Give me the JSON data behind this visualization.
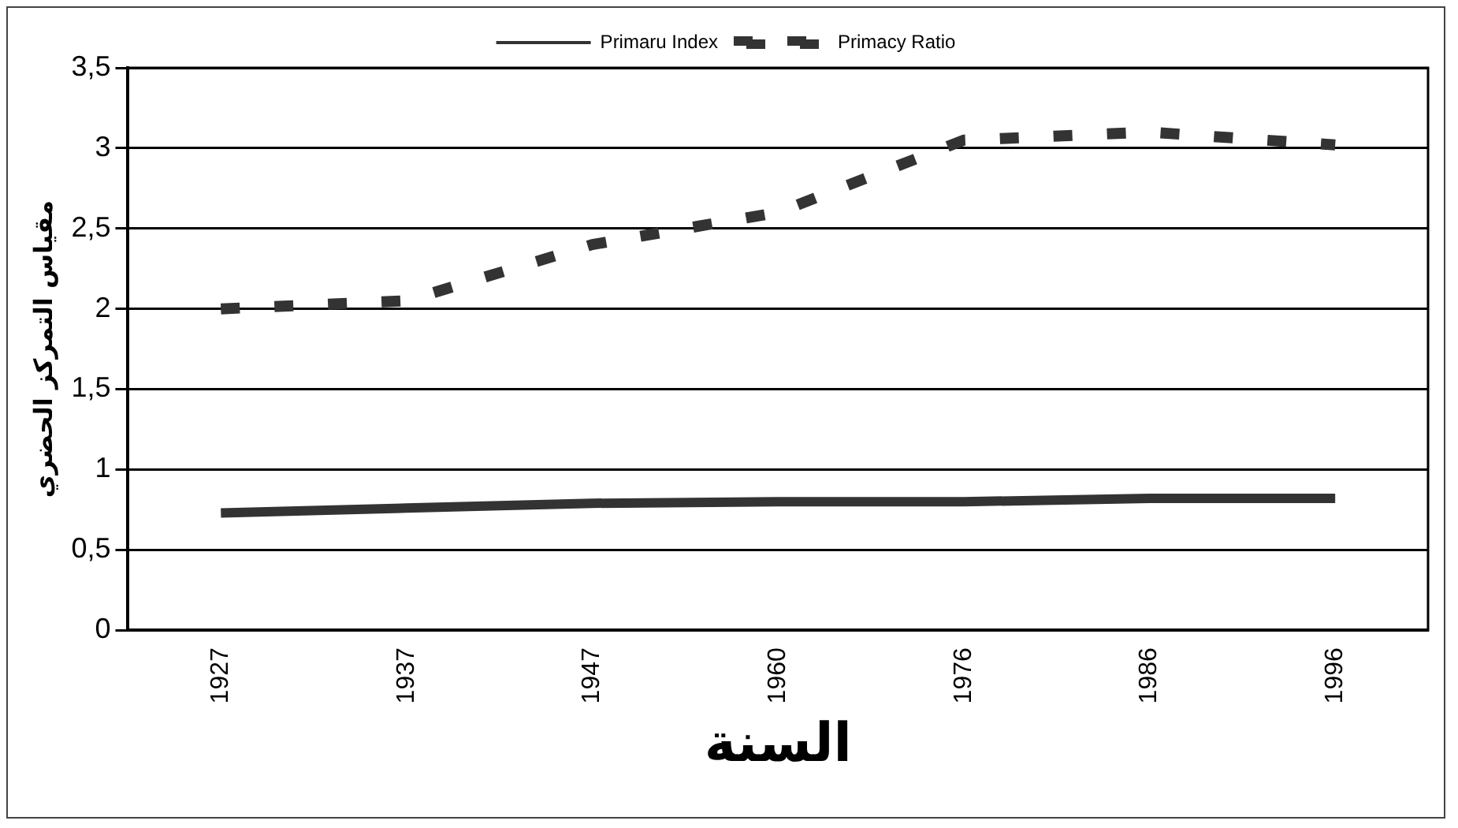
{
  "chart_data": {
    "type": "line",
    "xlabel": "السنة",
    "ylabel": "مقياس التمركز الحضري",
    "categories": [
      "1927",
      "1937",
      "1947",
      "1960",
      "1976",
      "1986",
      "1996"
    ],
    "series": [
      {
        "name": "Primaru Index",
        "color": "#333333",
        "line_style": "solid",
        "values": [
          0.73,
          0.76,
          0.79,
          0.8,
          0.8,
          0.82,
          0.82
        ]
      },
      {
        "name": "Primacy Ratio",
        "color": "#333333",
        "line_style": "dashed",
        "values": [
          2.0,
          2.05,
          2.4,
          2.6,
          3.05,
          3.1,
          3.02
        ]
      }
    ],
    "ylim": [
      0,
      3.5
    ],
    "yticks": [
      0,
      {
        "value": 0.5,
        "label": "0,5"
      },
      1,
      {
        "value": 1.5,
        "label": "1,5"
      },
      2,
      {
        "value": 2.5,
        "label": "2,5"
      },
      3,
      {
        "value": 3.5,
        "label": "3,5"
      }
    ],
    "grid": "y",
    "legend": "top",
    "marker": "none"
  }
}
